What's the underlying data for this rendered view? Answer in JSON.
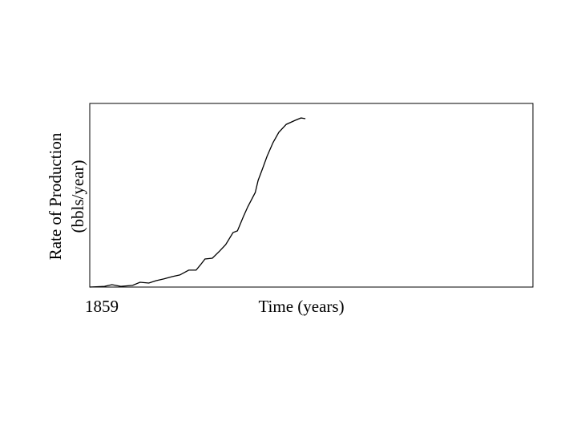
{
  "chart_data": {
    "type": "line",
    "y_label": [
      "Rate of Production",
      "(bbls/year)"
    ],
    "x_label": "Time (years)",
    "x": [
      1859,
      1869,
      1874,
      1880,
      1888,
      1893,
      1899,
      1904,
      1909,
      1915,
      1920,
      1926,
      1931,
      1934,
      1937,
      1942,
      1947,
      1951,
      1956,
      1959,
      1963,
      1966,
      1971,
      1973,
      1976,
      1979,
      1983,
      1987,
      1992,
      1998,
      2002,
      2005
    ],
    "series": [
      {
        "color": "#000000",
        "values": [
          0,
          0.4,
          1.3,
          0.4,
          0.9,
          2.6,
          2.2,
          3.5,
          4.4,
          5.7,
          6.6,
          9.2,
          9.2,
          12.2,
          15.3,
          15.7,
          19.7,
          23.1,
          29.7,
          30.6,
          38.4,
          43.7,
          51.5,
          58.1,
          64.6,
          71.2,
          78.6,
          84.3,
          88.6,
          90.8,
          92.1,
          91.7
        ]
      }
    ],
    "xlim": [
      1859,
      2159
    ],
    "xticks": [
      1859
    ],
    "ylim": [
      0,
      100
    ]
  }
}
